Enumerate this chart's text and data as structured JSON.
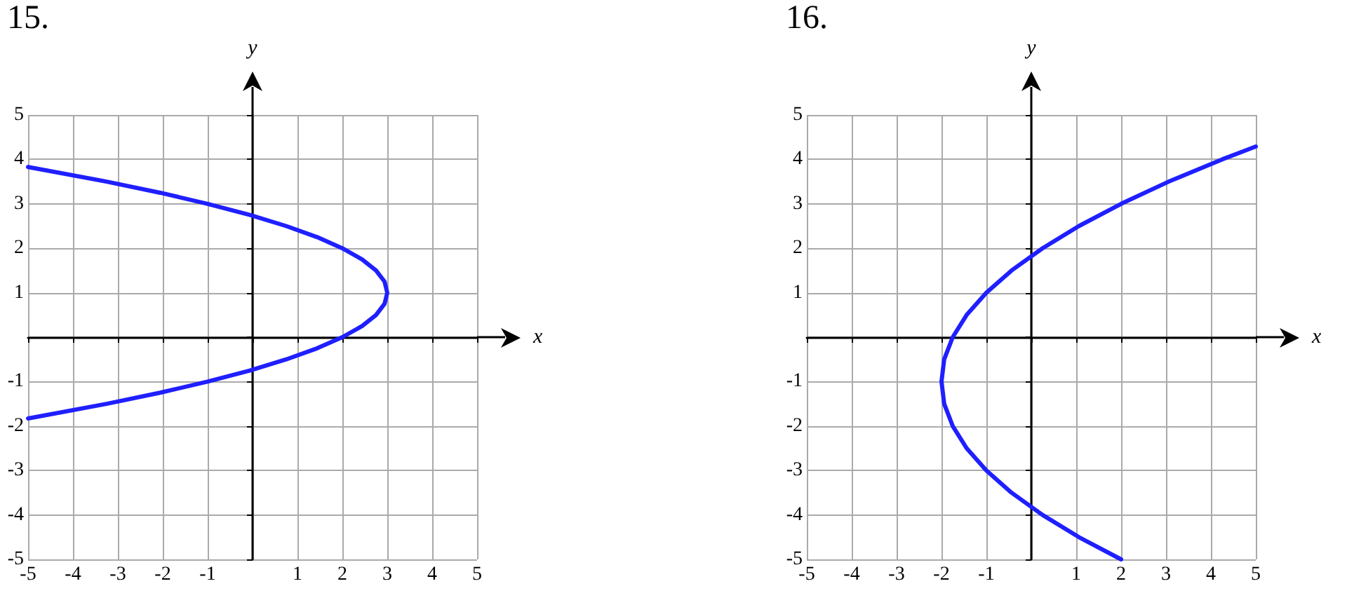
{
  "chart_data": [
    {
      "type": "line",
      "title": "15.",
      "xlabel": "x",
      "ylabel": "y",
      "xlim": [
        -5,
        5
      ],
      "ylim": [
        -5,
        5
      ],
      "xticks": [
        -5,
        -4,
        -3,
        -2,
        -1,
        {
          "value": 0,
          "label": null
        },
        1,
        2,
        3,
        4,
        5
      ],
      "yticks": [
        -5,
        -4,
        -3,
        -2,
        -1,
        {
          "value": 0,
          "label": null
        },
        1,
        2,
        3,
        4,
        5
      ],
      "grid": true,
      "marker": "none",
      "line_style": "solid",
      "series": [
        {
          "color": "#1f1fff",
          "x": [
            -5,
            -3.25,
            -2.06,
            -1,
            -0.06,
            0.75,
            1.44,
            2,
            2.44,
            2.75,
            2.94,
            3,
            2.94,
            2.75,
            2.44,
            2,
            1.44,
            0.75,
            -0.06,
            -1,
            -2.06,
            -3.25,
            -5
          ],
          "values": [
            -1.83,
            -1.5,
            -1.25,
            -1,
            -0.75,
            -0.5,
            -0.25,
            0,
            0.25,
            0.5,
            0.75,
            1,
            1.25,
            1.5,
            1.75,
            2,
            2.25,
            2.5,
            2.75,
            3,
            3.25,
            3.5,
            3.83
          ]
        }
      ]
    },
    {
      "type": "line",
      "title": "16.",
      "xlabel": "x",
      "ylabel": "y",
      "xlim": [
        -5,
        5
      ],
      "ylim": [
        -5,
        5
      ],
      "xticks": [
        -5,
        -4,
        -3,
        -2,
        -1,
        {
          "value": 0,
          "label": null
        },
        1,
        2,
        3,
        4,
        5
      ],
      "yticks": [
        -5,
        -4,
        -3,
        -2,
        -1,
        {
          "value": 0,
          "label": null
        },
        1,
        2,
        3,
        4,
        5
      ],
      "grid": true,
      "marker": "none",
      "line_style": "solid",
      "series": [
        {
          "color": "#1f1fff",
          "x": [
            2,
            1.06,
            0.25,
            -0.44,
            -1,
            -1.44,
            -1.75,
            -1.94,
            -2,
            -1.94,
            -1.75,
            -1.44,
            -1,
            -0.44,
            0.25,
            1.06,
            2,
            3.06,
            4.25,
            5
          ],
          "values": [
            -5,
            -4.5,
            -4,
            -3.5,
            -3,
            -2.5,
            -2,
            -1.5,
            -1,
            -0.5,
            0,
            0.5,
            1,
            1.5,
            2,
            2.5,
            3,
            3.5,
            4,
            4.29
          ]
        }
      ]
    }
  ]
}
